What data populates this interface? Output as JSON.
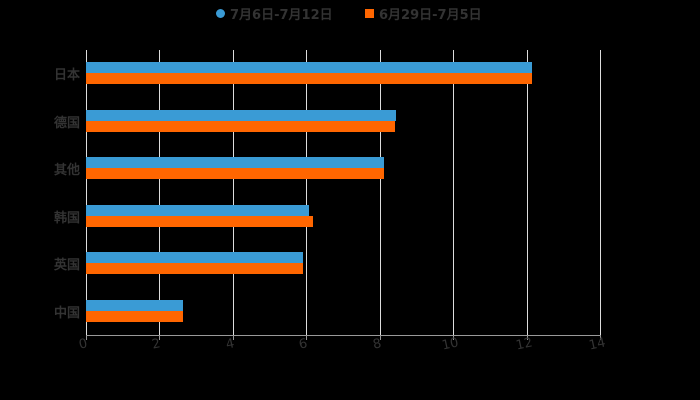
{
  "chart_data": {
    "type": "bar",
    "orientation": "horizontal",
    "title": "",
    "xlabel": "",
    "ylabel": "",
    "categories": [
      "日本",
      "德国",
      "其他",
      "韩国",
      "英国",
      "中国"
    ],
    "series": [
      {
        "name": "7月6日-7月12日",
        "color": "#3a9bd5",
        "values": [
          12.15,
          8.44,
          8.12,
          6.07,
          5.91,
          2.64
        ]
      },
      {
        "name": "6月29日-7月5日",
        "color": "#ff6600",
        "values": [
          12.15,
          8.42,
          8.12,
          6.18,
          5.91,
          2.64
        ]
      }
    ],
    "xlim": [
      0,
      14
    ],
    "xticks": [
      "0",
      "2",
      "4",
      "6",
      "8",
      "10",
      "12",
      "14"
    ],
    "grid": true,
    "legend_position": "top"
  },
  "legend": {
    "series0": "7月6日-7月12日",
    "series1": "6月29日-7月5日"
  }
}
